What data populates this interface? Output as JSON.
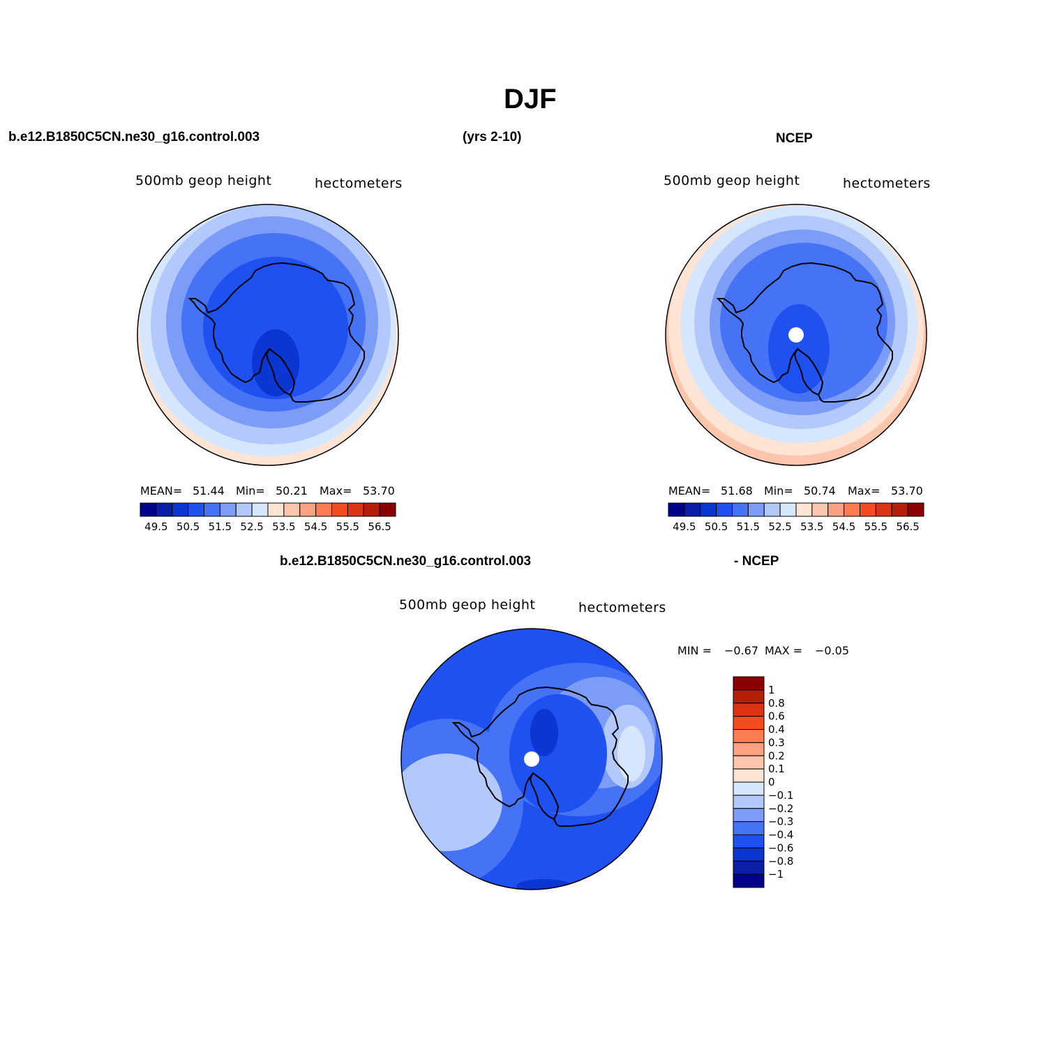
{
  "title": "DJF",
  "header": {
    "case_name": "b.e12.B1850C5CN.ne30_g16.control.003",
    "years": "(yrs 2-10)",
    "obs_name": "NCEP",
    "diff_case": "b.e12.B1850C5CN.ne30_g16.control.003",
    "diff_obs": "- NCEP"
  },
  "panels": [
    {
      "variable": "500mb geop height",
      "units": "hectometers",
      "mean_label": "MEAN=",
      "mean": "51.44",
      "min_label": "Min=",
      "min": "50.21",
      "max_label": "Max=",
      "max": "53.70"
    },
    {
      "variable": "500mb geop height",
      "units": "hectometers",
      "mean_label": "MEAN=",
      "mean": "51.68",
      "min_label": "Min=",
      "min": "50.74",
      "max_label": "Max=",
      "max": "53.70"
    },
    {
      "variable": "500mb geop height",
      "units": "hectometers",
      "min_label": "MIN =",
      "min": "−0.67",
      "max_label": "MAX =",
      "max": "−0.05"
    }
  ],
  "colorbar_main": {
    "colors": [
      "#00008b",
      "#0a1fa8",
      "#0a37d2",
      "#1f50f0",
      "#4673f5",
      "#7b9cf7",
      "#b4c9fb",
      "#d6e6fd",
      "#fde4d4",
      "#fcc6ad",
      "#fca283",
      "#fd7c52",
      "#f44c1e",
      "#dc3412",
      "#b61e0a",
      "#8b0000"
    ],
    "tick_labels": [
      "49.5",
      "50.5",
      "51.5",
      "52.5",
      "53.5",
      "54.5",
      "55.5",
      "56.5"
    ]
  },
  "colorbar_diff": {
    "colors": [
      "#8b0000",
      "#b61e0a",
      "#dc3412",
      "#f44c1e",
      "#fd7c52",
      "#fca283",
      "#fcc6ad",
      "#fde4d4",
      "#d6e6fd",
      "#b4c9fb",
      "#7b9cf7",
      "#4673f5",
      "#1f50f0",
      "#0a37d2",
      "#0a1fa8",
      "#00008b"
    ],
    "tick_labels": [
      "1",
      "0.8",
      "0.6",
      "0.4",
      "0.3",
      "0.2",
      "0.1",
      "0",
      "−0.1",
      "−0.2",
      "−0.3",
      "−0.4",
      "−0.6",
      "−0.8",
      "−1"
    ]
  }
}
